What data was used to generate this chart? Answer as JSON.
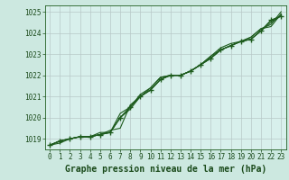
{
  "xlabel": "Graphe pression niveau de la mer (hPa)",
  "ylim": [
    1018.5,
    1025.3
  ],
  "xlim": [
    -0.5,
    23.5
  ],
  "yticks": [
    1019,
    1020,
    1021,
    1022,
    1023,
    1024,
    1025
  ],
  "xticks": [
    0,
    1,
    2,
    3,
    4,
    5,
    6,
    7,
    8,
    9,
    10,
    11,
    12,
    13,
    14,
    15,
    16,
    17,
    18,
    19,
    20,
    21,
    22,
    23
  ],
  "bg_color": "#cce8e0",
  "plot_bg_color": "#d8f0ec",
  "line_color": "#1e5c1e",
  "grid_color": "#b8c8c8",
  "series": [
    [
      1018.7,
      1018.8,
      1019.0,
      1019.1,
      1019.1,
      1019.2,
      1019.3,
      1020.0,
      1020.5,
      1021.0,
      1021.3,
      1021.8,
      1022.0,
      1022.0,
      1022.2,
      1022.5,
      1022.8,
      1023.2,
      1023.4,
      1023.6,
      1023.7,
      1024.1,
      1024.6,
      1024.8
    ],
    [
      1018.7,
      1018.9,
      1019.0,
      1019.1,
      1019.1,
      1019.2,
      1019.4,
      1019.5,
      1020.6,
      1021.0,
      1021.4,
      1021.9,
      1022.0,
      1022.0,
      1022.2,
      1022.5,
      1022.9,
      1023.2,
      1023.4,
      1023.6,
      1023.8,
      1024.2,
      1024.3,
      1024.9
    ],
    [
      1018.7,
      1018.9,
      1019.0,
      1019.1,
      1019.1,
      1019.3,
      1019.3,
      1020.0,
      1020.4,
      1021.0,
      1021.3,
      1021.8,
      1022.0,
      1022.0,
      1022.2,
      1022.5,
      1022.8,
      1023.2,
      1023.4,
      1023.6,
      1023.7,
      1024.1,
      1024.5,
      1024.8
    ],
    [
      1018.7,
      1018.9,
      1019.0,
      1019.1,
      1019.1,
      1019.2,
      1019.3,
      1020.2,
      1020.5,
      1021.1,
      1021.4,
      1021.9,
      1022.0,
      1022.0,
      1022.2,
      1022.5,
      1022.9,
      1023.3,
      1023.5,
      1023.6,
      1023.8,
      1024.2,
      1024.4,
      1025.0
    ]
  ],
  "marker_series": [
    1018.7,
    1018.9,
    1019.0,
    1019.1,
    1019.1,
    1019.2,
    1019.3,
    1020.0,
    1020.5,
    1021.0,
    1021.3,
    1021.8,
    1022.0,
    1022.0,
    1022.2,
    1022.5,
    1022.8,
    1023.2,
    1023.4,
    1023.6,
    1023.7,
    1024.1,
    1024.6,
    1024.8
  ],
  "tick_fontsize": 5.5,
  "label_fontsize": 7.0,
  "font_color": "#1a4a1a"
}
